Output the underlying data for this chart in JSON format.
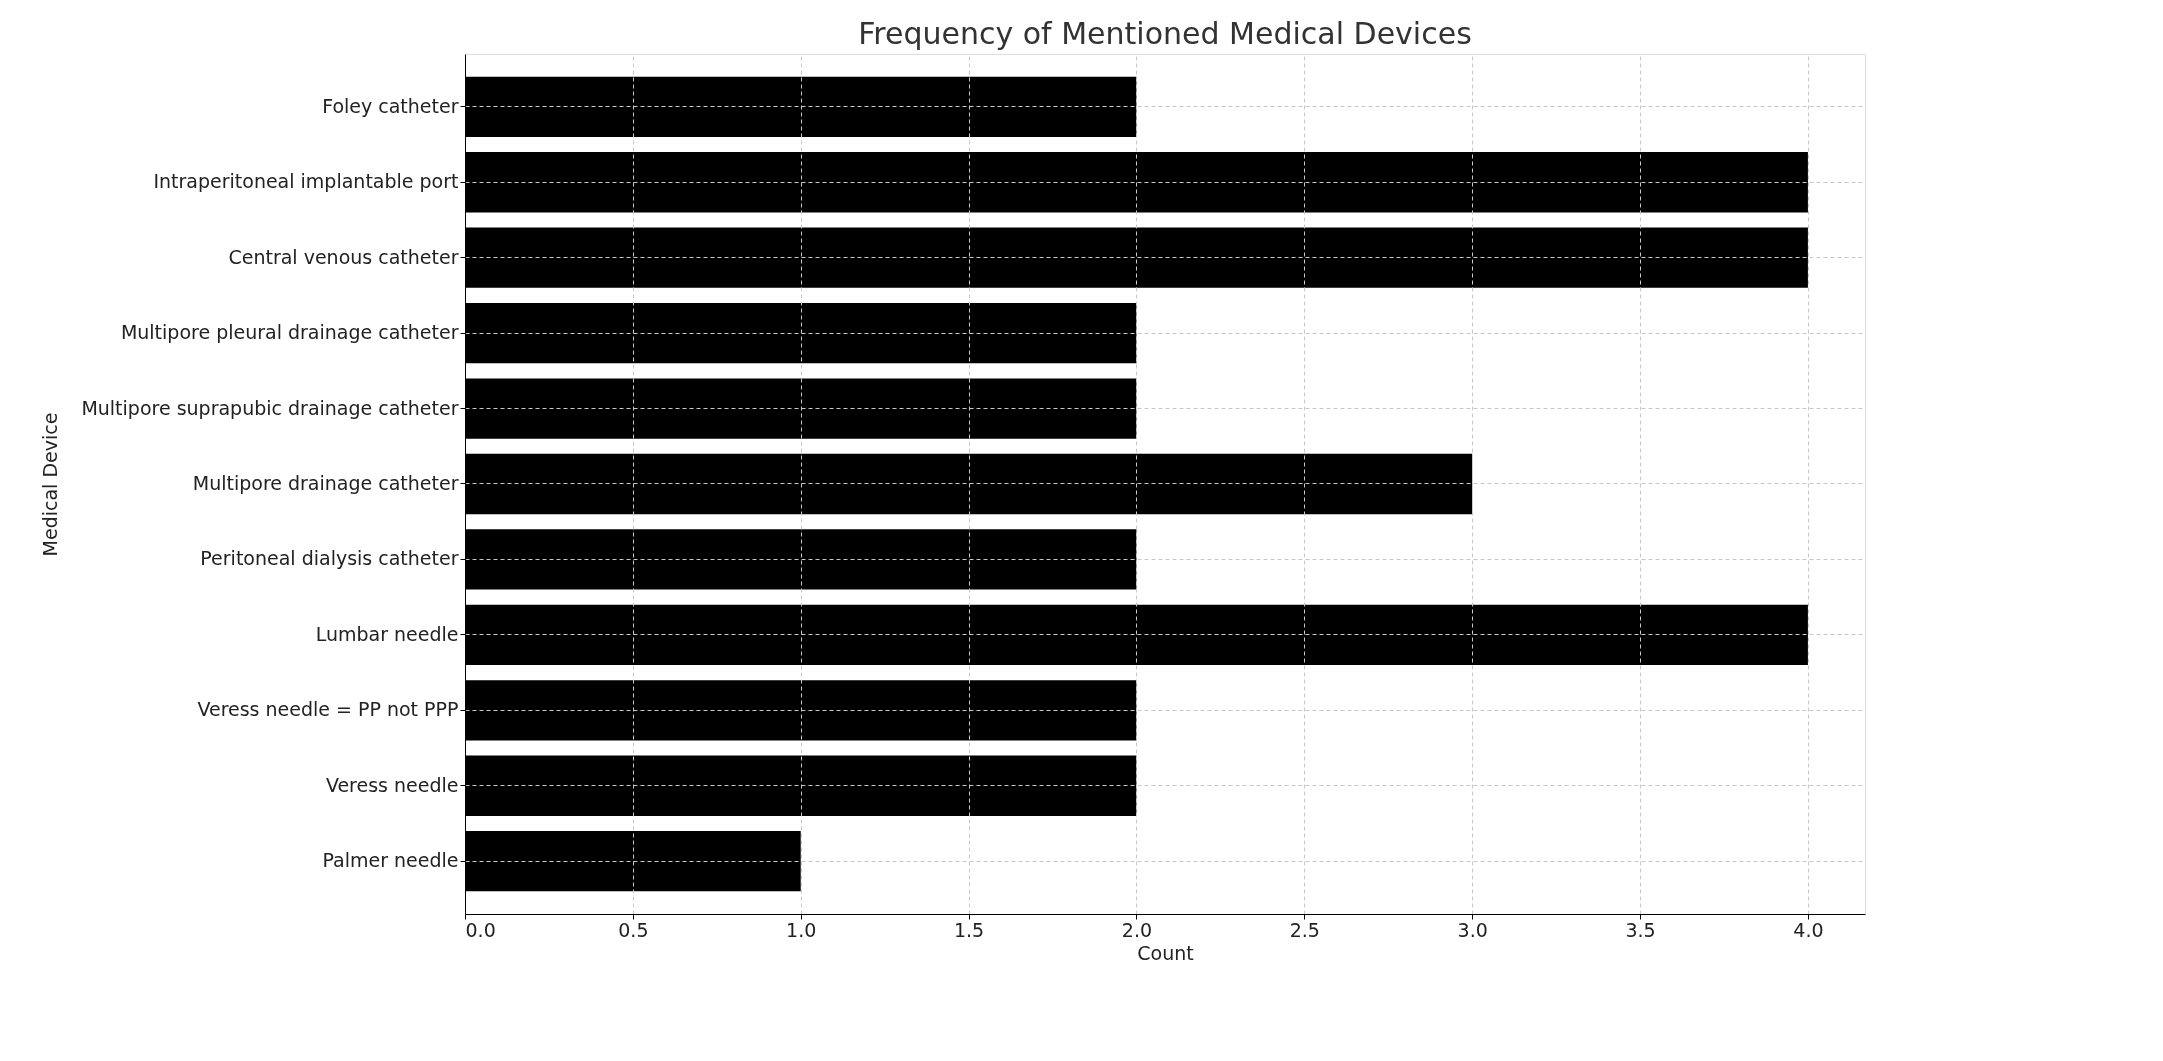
{
  "chart_data": {
    "type": "bar",
    "orientation": "horizontal",
    "title": "Frequency of Mentioned Medical Devices",
    "xlabel": "Count",
    "ylabel": "Medical Device",
    "categories": [
      "Foley catheter",
      "Intraperitoneal implantable port",
      "Central venous catheter",
      "Multipore pleural drainage catheter",
      "Multipore suprapubic drainage catheter",
      "Multipore drainage catheter",
      "Peritoneal dialysis catheter",
      "Lumbar needle",
      "Veress needle = PP not PPP",
      "Veress needle",
      "Palmer needle"
    ],
    "values": [
      2,
      4,
      4,
      2,
      2,
      3,
      2,
      4,
      2,
      2,
      1
    ],
    "color": "#000000",
    "xlim": [
      0,
      4.17
    ],
    "xticks": [
      {
        "value": 0,
        "label": "0.0"
      },
      0.5,
      {
        "value": 1,
        "label": "1.0"
      },
      1.5,
      {
        "value": 2,
        "label": "2.0"
      },
      2.5,
      {
        "value": 3,
        "label": "3.0"
      },
      3.5,
      {
        "value": 4,
        "label": "4.0"
      }
    ],
    "grid": true
  }
}
